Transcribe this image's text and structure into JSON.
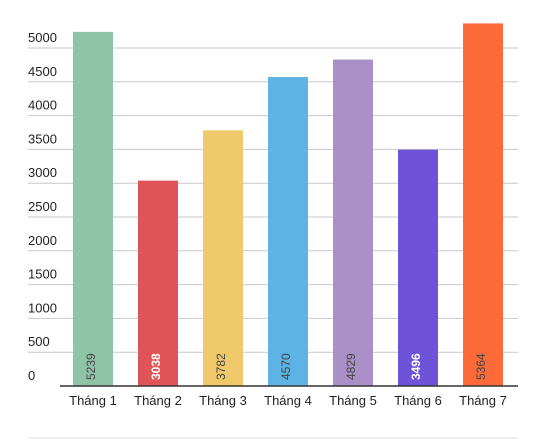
{
  "chart_data": {
    "type": "bar",
    "title": "",
    "xlabel": "",
    "ylabel": "",
    "categories": [
      "Tháng 1",
      "Tháng 2",
      "Tháng 3",
      "Tháng 4",
      "Tháng 5",
      "Tháng 6",
      "Tháng 7"
    ],
    "values": [
      5239,
      3038,
      3782,
      4570,
      4829,
      3496,
      5364
    ],
    "data_labels": [
      "5239",
      "3038",
      "3782",
      "4570",
      "4829",
      "3496",
      "5364"
    ],
    "colors": [
      "#8fc4a6",
      "#e05356",
      "#f0c96a",
      "#5db3e3",
      "#ab90c8",
      "#6e52d8",
      "#fc6a3a"
    ],
    "label_colors": [
      "#444444",
      "#ffffff",
      "#444444",
      "#444444",
      "#444444",
      "#ffffff",
      "#444444"
    ],
    "ylim": [
      0,
      5000
    ],
    "yticks": [
      0,
      500,
      1000,
      1500,
      2000,
      2500,
      3000,
      3500,
      4000,
      4500,
      5000
    ],
    "grid": true,
    "legend": "none"
  }
}
